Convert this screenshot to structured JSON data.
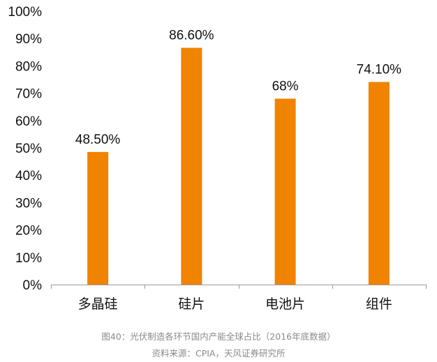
{
  "chart_data": {
    "type": "bar",
    "categories": [
      "多晶硅",
      "硅片",
      "电池片",
      "组件"
    ],
    "values": [
      48.5,
      86.6,
      68,
      74.1
    ],
    "data_labels": [
      "48.50%",
      "86.60%",
      "68%",
      "74.10%"
    ],
    "ylim": [
      0,
      100
    ],
    "yticks": [
      0,
      10,
      20,
      30,
      40,
      50,
      60,
      70,
      80,
      90,
      100
    ],
    "ytick_labels": [
      "0%",
      "10%",
      "20%",
      "30%",
      "40%",
      "50%",
      "60%",
      "70%",
      "80%",
      "90%",
      "100%"
    ],
    "grid": false,
    "legend": "none",
    "bar_color": "#F08300",
    "axis_color": "#999999"
  },
  "caption": {
    "figure": "图40：光伏制造各环节国内产能全球占比（2016年底数据）",
    "source": "资料来源：CPIA，天风证券研究所"
  }
}
